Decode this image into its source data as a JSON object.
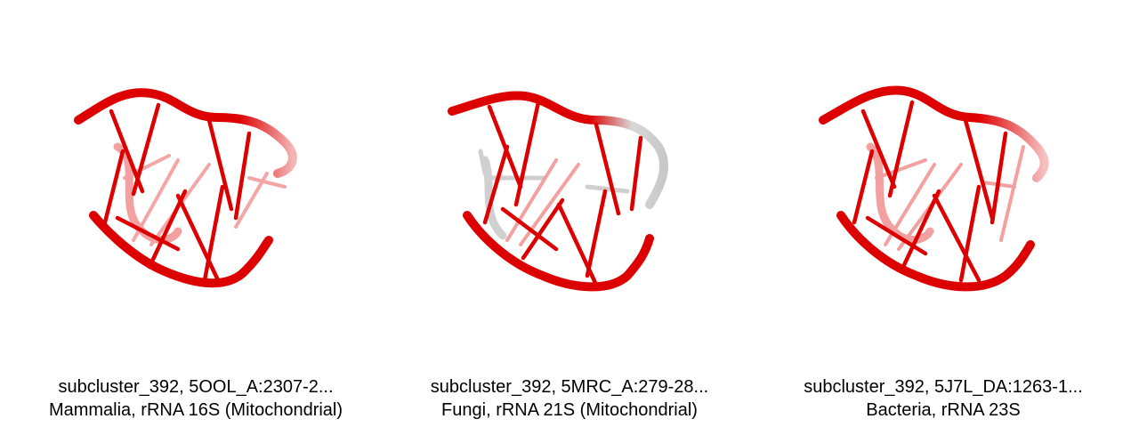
{
  "panels": [
    {
      "line1": "subcluster_392, 5OOL_A:2307-2...",
      "line2": "Mammalia, rRNA 16S (Mitochondrial)"
    },
    {
      "line1": "subcluster_392, 5MRC_A:279-28...",
      "line2": "Fungi, rRNA 21S (Mitochondrial)"
    },
    {
      "line1": "subcluster_392, 5J7L_DA:1263-1...",
      "line2": "Bacteria, rRNA 23S"
    }
  ],
  "colors": {
    "backbone": "#dd0000",
    "backbone_light": "#f08a8a",
    "gray_residue": "#c8c8c8"
  }
}
